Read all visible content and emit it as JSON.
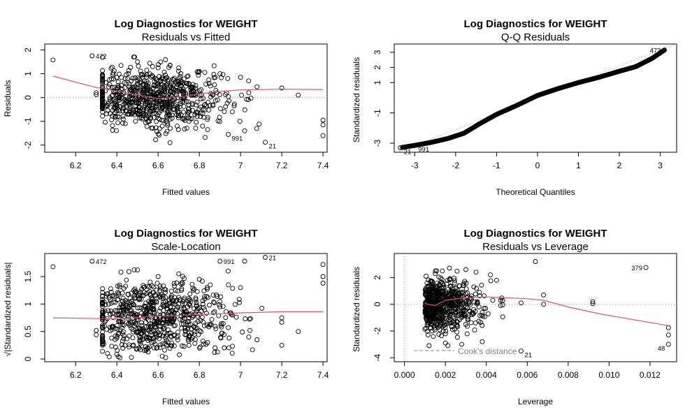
{
  "chart_data": [
    {
      "type": "scatter",
      "title": "Log Diagnostics for WEIGHT",
      "subtitle": "Residuals vs Fitted",
      "xlabel": "Fitted values",
      "ylabel": "Residuals",
      "xlim": [
        6.05,
        7.42
      ],
      "ylim": [
        -2.3,
        2.25
      ],
      "xticks": [
        6.2,
        6.4,
        6.6,
        6.8,
        7.0,
        7.2,
        7.4
      ],
      "yticks": [
        -2,
        -1,
        0,
        1,
        2
      ],
      "reference_line": 0,
      "smooth": {
        "x": [
          6.09,
          6.3,
          6.5,
          6.6,
          6.7,
          6.8,
          6.9,
          7.0,
          7.2,
          7.4
        ],
        "y": [
          0.9,
          0.42,
          0.12,
          -0.05,
          0.02,
          0.15,
          0.25,
          0.32,
          0.35,
          0.34
        ]
      },
      "points": [
        {
          "x": 6.09,
          "y": 1.58
        },
        {
          "x": 6.28,
          "y": 1.75,
          "label": "472"
        },
        {
          "x": 6.3,
          "y": 0.2
        },
        {
          "x": 6.3,
          "y": 0.12
        },
        {
          "x": 6.36,
          "y": 0.45
        },
        {
          "x": 6.38,
          "y": 0.1
        },
        {
          "x": 6.4,
          "y": -0.3
        },
        {
          "x": 6.42,
          "y": 1.35
        },
        {
          "x": 6.44,
          "y": 0.8
        },
        {
          "x": 6.46,
          "y": -0.7
        },
        {
          "x": 6.5,
          "y": 1.5
        },
        {
          "x": 6.55,
          "y": -1.0
        },
        {
          "x": 6.6,
          "y": 1.25
        },
        {
          "x": 6.62,
          "y": -1.2
        },
        {
          "x": 6.7,
          "y": 1.25
        },
        {
          "x": 6.75,
          "y": -1.0
        },
        {
          "x": 6.8,
          "y": 1.1
        },
        {
          "x": 6.84,
          "y": -1.35
        },
        {
          "x": 6.9,
          "y": 1.0
        },
        {
          "x": 6.94,
          "y": -1.55,
          "label": "991"
        },
        {
          "x": 7.0,
          "y": 0.85
        },
        {
          "x": 7.02,
          "y": -1.4
        },
        {
          "x": 7.08,
          "y": 0.45
        },
        {
          "x": 7.12,
          "y": -1.88,
          "label": "21"
        },
        {
          "x": 7.2,
          "y": 0.4
        },
        {
          "x": 7.28,
          "y": 0.1
        },
        {
          "x": 7.4,
          "y": -0.95
        },
        {
          "x": 7.4,
          "y": -1.15
        },
        {
          "x": 7.4,
          "y": -1.6
        },
        {
          "x": 6.58,
          "y": 0.5
        },
        {
          "x": 6.66,
          "y": -0.4
        },
        {
          "x": 6.72,
          "y": 0.6
        },
        {
          "x": 6.88,
          "y": 0.3
        },
        {
          "x": 6.96,
          "y": -0.6
        },
        {
          "x": 7.04,
          "y": 0.2
        },
        {
          "x": 6.52,
          "y": 0.0
        }
      ]
    },
    {
      "type": "scatter",
      "title": "Log Diagnostics for WEIGHT",
      "subtitle": "Q-Q Residuals",
      "xlabel": "Theoretical Quantiles",
      "ylabel": "Standardized residuals",
      "xlim": [
        -3.5,
        3.4
      ],
      "ylim": [
        -3.6,
        3.55
      ],
      "xticks": [
        -3,
        -2,
        -1,
        0,
        1,
        2,
        3
      ],
      "yticks": [
        -3,
        -1,
        1,
        2,
        3
      ],
      "reference_line": {
        "slope": 1.05,
        "intercept": 0
      },
      "qq_curve": {
        "x": [
          -3.35,
          -3.0,
          -2.6,
          -2.2,
          -1.8,
          -1.4,
          -1.0,
          -0.5,
          0.0,
          0.5,
          1.0,
          1.5,
          2.0,
          2.4,
          2.8,
          3.1
        ],
        "y": [
          -3.3,
          -3.15,
          -2.95,
          -2.7,
          -2.35,
          -1.7,
          -1.1,
          -0.5,
          0.15,
          0.6,
          1.0,
          1.35,
          1.75,
          2.05,
          2.6,
          3.15
        ]
      },
      "points": [
        {
          "x": 3.1,
          "y": 3.15,
          "label": "472"
        },
        {
          "x": -3.35,
          "y": -3.3,
          "label": "21"
        },
        {
          "x": -3.0,
          "y": -3.15,
          "label": "991"
        }
      ]
    },
    {
      "type": "scatter",
      "title": "Log Diagnostics for WEIGHT",
      "subtitle": "Scale-Location",
      "xlabel": "Fitted values",
      "ylabel": "√|Standardized residuals|",
      "xlim": [
        6.05,
        7.42
      ],
      "ylim": [
        -0.05,
        1.92
      ],
      "xticks": [
        6.2,
        6.4,
        6.6,
        6.8,
        7.0,
        7.2,
        7.4
      ],
      "yticks": [
        0.0,
        0.5,
        1.0,
        1.5
      ],
      "smooth": {
        "x": [
          6.09,
          6.4,
          6.6,
          6.8,
          7.0,
          7.2,
          7.4
        ],
        "y": [
          0.75,
          0.73,
          0.78,
          0.81,
          0.84,
          0.86,
          0.86
        ]
      },
      "points": [
        {
          "x": 6.09,
          "y": 1.68
        },
        {
          "x": 6.28,
          "y": 1.78,
          "label": "472"
        },
        {
          "x": 6.3,
          "y": 0.52
        },
        {
          "x": 6.3,
          "y": 0.44
        },
        {
          "x": 6.36,
          "y": 1.0
        },
        {
          "x": 6.38,
          "y": 0.6
        },
        {
          "x": 6.42,
          "y": 1.58
        },
        {
          "x": 6.44,
          "y": 0.25
        },
        {
          "x": 6.5,
          "y": 1.62
        },
        {
          "x": 6.55,
          "y": 0.2
        },
        {
          "x": 6.6,
          "y": 1.5
        },
        {
          "x": 6.62,
          "y": 0.05
        },
        {
          "x": 6.7,
          "y": 1.55
        },
        {
          "x": 6.75,
          "y": 0.25
        },
        {
          "x": 6.8,
          "y": 1.45
        },
        {
          "x": 6.84,
          "y": 0.3
        },
        {
          "x": 6.9,
          "y": 1.78,
          "label": "991"
        },
        {
          "x": 6.94,
          "y": 1.6
        },
        {
          "x": 7.0,
          "y": 1.3
        },
        {
          "x": 7.02,
          "y": 1.78
        },
        {
          "x": 7.08,
          "y": 0.35
        },
        {
          "x": 7.12,
          "y": 1.85,
          "label": "21"
        },
        {
          "x": 7.2,
          "y": 0.75
        },
        {
          "x": 7.28,
          "y": 0.5
        },
        {
          "x": 7.4,
          "y": 1.72
        },
        {
          "x": 7.4,
          "y": 1.5
        },
        {
          "x": 7.4,
          "y": 1.38
        },
        {
          "x": 6.58,
          "y": 0.9
        },
        {
          "x": 6.66,
          "y": 0.65
        },
        {
          "x": 6.72,
          "y": 1.05
        },
        {
          "x": 6.88,
          "y": 0.55
        },
        {
          "x": 6.96,
          "y": 0.8
        },
        {
          "x": 7.04,
          "y": 0.4
        },
        {
          "x": 7.2,
          "y": 0.25
        }
      ]
    },
    {
      "type": "scatter",
      "title": "Log Diagnostics for WEIGHT",
      "subtitle": "Residuals vs Leverage",
      "xlabel": "Leverage",
      "ylabel": "Standardized residuals",
      "xlim": [
        -0.0005,
        0.0133
      ],
      "ylim": [
        -4.3,
        3.8
      ],
      "xticks": [
        0.0,
        0.002,
        0.004,
        0.006,
        0.008,
        0.01,
        0.012
      ],
      "xtick_labels": [
        "0.000",
        "0.002",
        "0.004",
        "0.006",
        "0.008",
        "0.010",
        "0.012"
      ],
      "yticks": [
        -4,
        -2,
        0,
        2
      ],
      "reference_line": 0,
      "legend": "Cook's distance",
      "smooth": {
        "x": [
          0.001,
          0.0015,
          0.002,
          0.003,
          0.004,
          0.005,
          0.006,
          0.0068,
          0.008,
          0.0095,
          0.011,
          0.0129
        ],
        "y": [
          0.05,
          -0.1,
          0.3,
          0.5,
          0.55,
          0.48,
          0.42,
          0.3,
          -0.2,
          -0.7,
          -1.1,
          -1.6
        ]
      },
      "points": [
        {
          "x": 0.0118,
          "y": 2.75,
          "label": "379"
        },
        {
          "x": 0.0129,
          "y": -3.0,
          "label": "48"
        },
        {
          "x": 0.0057,
          "y": -3.5,
          "label": "21"
        },
        {
          "x": 0.0129,
          "y": -1.75
        },
        {
          "x": 0.0129,
          "y": -2.3
        },
        {
          "x": 0.0064,
          "y": 3.2
        },
        {
          "x": 0.0092,
          "y": 0.2
        },
        {
          "x": 0.0092,
          "y": 0.05
        },
        {
          "x": 0.0068,
          "y": 0.7
        },
        {
          "x": 0.0068,
          "y": 0.0
        },
        {
          "x": 0.0057,
          "y": 0.1
        },
        {
          "x": 0.0047,
          "y": 0.3
        },
        {
          "x": 0.0047,
          "y": -0.1
        },
        {
          "x": 0.0045,
          "y": 1.8
        },
        {
          "x": 0.0042,
          "y": 2.2
        },
        {
          "x": 0.0038,
          "y": -2.8
        },
        {
          "x": 0.0035,
          "y": 2.4
        },
        {
          "x": 0.003,
          "y": 2.6
        },
        {
          "x": 0.0028,
          "y": -3.0
        },
        {
          "x": 0.0022,
          "y": 2.7
        },
        {
          "x": 0.002,
          "y": -2.9
        },
        {
          "x": 0.0015,
          "y": 2.3
        },
        {
          "x": 0.0012,
          "y": -3.1
        }
      ]
    }
  ]
}
